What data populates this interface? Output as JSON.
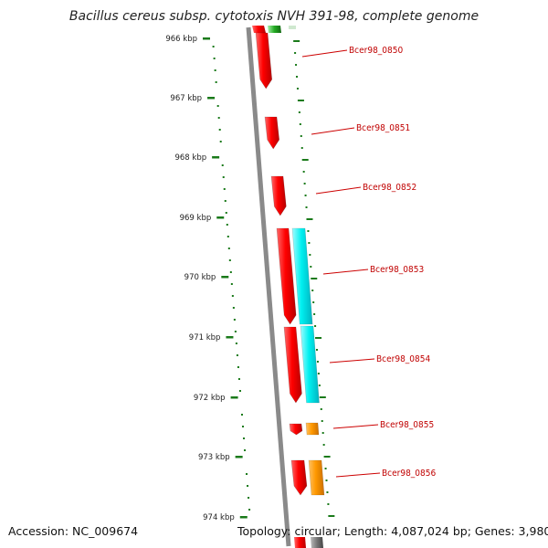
{
  "title": "Bacillus cereus subsp. cytotoxis NVH 391-98, complete genome",
  "footer": {
    "accession": "Accession: NC_009674",
    "summary": "Topology: circular; Length: 4,087,024 bp; Genes: 3,980"
  },
  "ticks": [
    "966 kbp",
    "967 kbp",
    "968 kbp",
    "969 kbp",
    "970 kbp",
    "971 kbp",
    "972 kbp",
    "973 kbp",
    "974 kbp"
  ],
  "genes": [
    {
      "label": "Bcer98_0850"
    },
    {
      "label": "Bcer98_0851"
    },
    {
      "label": "Bcer98_0852"
    },
    {
      "label": "Bcer98_0853"
    },
    {
      "label": "Bcer98_0854"
    },
    {
      "label": "Bcer98_0855"
    },
    {
      "label": "Bcer98_0856"
    }
  ],
  "colors": {
    "cds": "#ff0000",
    "rrna_like": "#00f0f0",
    "orange_feature": "#ff9900",
    "ticks": "#1a7a1a",
    "backbone": "#888888",
    "label": "#c00000"
  }
}
